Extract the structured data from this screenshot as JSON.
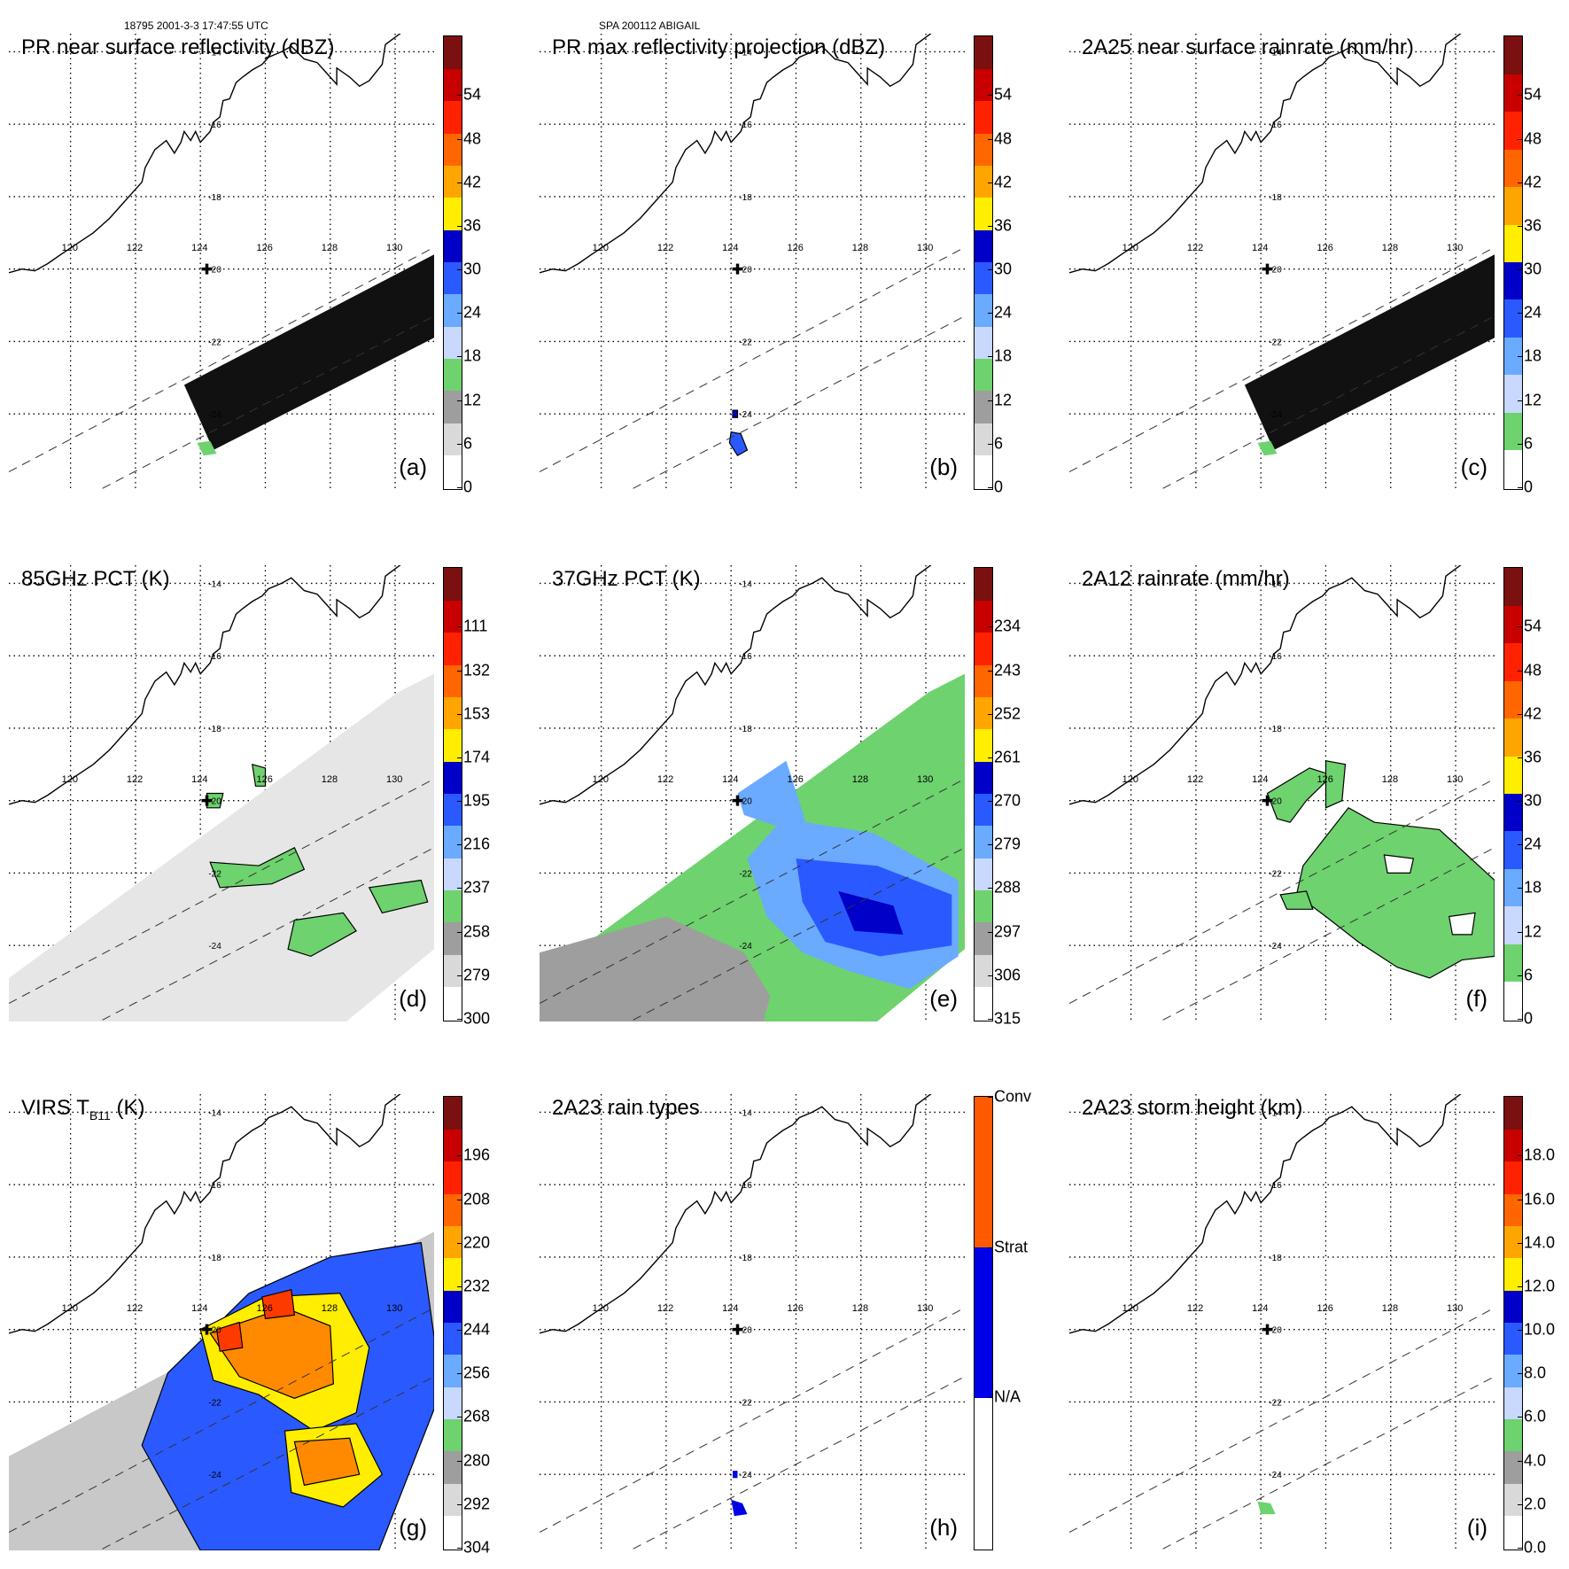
{
  "header": {
    "left": "18795 2001-3-3 17:47:55 UTC",
    "center": "SPA 200112 ABIGAIL"
  },
  "map": {
    "lon_ticks": [
      "120",
      "122",
      "124",
      "126",
      "128",
      "130"
    ],
    "lat_ticks": [
      "-14",
      "-16",
      "-18",
      "-20",
      "-22",
      "-24"
    ],
    "lon_range": [
      118.1,
      131.2
    ],
    "lat_range": [
      -26.1,
      -13.5
    ]
  },
  "panels": [
    {
      "id": "a",
      "letter": "(a)",
      "title": "PR near surface reflectivity (dBZ)",
      "field": "pr-swath-nodata",
      "colorbar": {
        "ticks": [
          "0",
          "6",
          "12",
          "18",
          "24",
          "30",
          "36",
          "42",
          "48",
          "54"
        ],
        "colors": [
          "#ffffff",
          "#d9d9d9",
          "#9e9e9e",
          "#6ed26e",
          "#c8d8ff",
          "#6aaaff",
          "#2a5aff",
          "#0000c8",
          "#ffee00",
          "#ffa500",
          "#ff6600",
          "#ff2200",
          "#c80000",
          "#7a1010"
        ]
      }
    },
    {
      "id": "b",
      "letter": "(b)",
      "title": "PR max reflectivity projection (dBZ)",
      "field": "pr-max-echo",
      "colorbar": {
        "ticks": [
          "0",
          "6",
          "12",
          "18",
          "24",
          "30",
          "36",
          "42",
          "48",
          "54"
        ],
        "colors": [
          "#ffffff",
          "#d9d9d9",
          "#9e9e9e",
          "#6ed26e",
          "#c8d8ff",
          "#6aaaff",
          "#2a5aff",
          "#0000c8",
          "#ffee00",
          "#ffa500",
          "#ff6600",
          "#ff2200",
          "#c80000",
          "#7a1010"
        ]
      }
    },
    {
      "id": "c",
      "letter": "(c)",
      "title": "2A25 near surface rainrate (mm/hr)",
      "field": "pr-swath-nodata",
      "colorbar": {
        "ticks": [
          "0",
          "6",
          "12",
          "18",
          "24",
          "30",
          "36",
          "42",
          "48",
          "54"
        ],
        "colors": [
          "#ffffff",
          "#6ed26e",
          "#c8d8ff",
          "#6aaaff",
          "#2a5aff",
          "#0000c8",
          "#ffee00",
          "#ffa500",
          "#ff6600",
          "#ff2200",
          "#c80000",
          "#7a1010"
        ]
      }
    },
    {
      "id": "d",
      "letter": "(d)",
      "title": "85GHz PCT (K)",
      "field": "tmi-85",
      "colorbar": {
        "ticks": [
          "300",
          "279",
          "258",
          "237",
          "216",
          "195",
          "174",
          "153",
          "132",
          "111"
        ],
        "colors": [
          "#ffffff",
          "#d9d9d9",
          "#9e9e9e",
          "#6ed26e",
          "#c8d8ff",
          "#6aaaff",
          "#2a5aff",
          "#0000c8",
          "#ffee00",
          "#ffa500",
          "#ff6600",
          "#ff2200",
          "#c80000",
          "#7a1010"
        ]
      }
    },
    {
      "id": "e",
      "letter": "(e)",
      "title": "37GHz PCT (K)",
      "field": "tmi-37",
      "colorbar": {
        "ticks": [
          "315",
          "306",
          "297",
          "288",
          "279",
          "270",
          "261",
          "252",
          "243",
          "234"
        ],
        "colors": [
          "#ffffff",
          "#d9d9d9",
          "#9e9e9e",
          "#6ed26e",
          "#c8d8ff",
          "#6aaaff",
          "#2a5aff",
          "#0000c8",
          "#ffee00",
          "#ffa500",
          "#ff6600",
          "#ff2200",
          "#c80000",
          "#7a1010"
        ]
      }
    },
    {
      "id": "f",
      "letter": "(f)",
      "title": "2A12 rainrate (mm/hr)",
      "field": "tmi-rain",
      "colorbar": {
        "ticks": [
          "0",
          "6",
          "12",
          "18",
          "24",
          "30",
          "36",
          "42",
          "48",
          "54"
        ],
        "colors": [
          "#ffffff",
          "#6ed26e",
          "#c8d8ff",
          "#6aaaff",
          "#2a5aff",
          "#0000c8",
          "#ffee00",
          "#ffa500",
          "#ff6600",
          "#ff2200",
          "#c80000",
          "#7a1010"
        ]
      }
    },
    {
      "id": "g",
      "letter": "(g)",
      "title": "VIRS T",
      "title_sub": "B11",
      "title_suffix": " (K)",
      "field": "virs",
      "colorbar": {
        "ticks": [
          "304",
          "292",
          "280",
          "268",
          "256",
          "244",
          "232",
          "220",
          "208",
          "196"
        ],
        "colors": [
          "#ffffff",
          "#d9d9d9",
          "#9e9e9e",
          "#6ed26e",
          "#c8d8ff",
          "#6aaaff",
          "#2a5aff",
          "#0000c8",
          "#ffee00",
          "#ffa500",
          "#ff6600",
          "#ff2200",
          "#c80000",
          "#7a1010"
        ]
      }
    },
    {
      "id": "h",
      "letter": "(h)",
      "title": "2A23 rain types",
      "field": "rain-types",
      "colorbar": {
        "ticks": [
          "N/A",
          "Strat",
          "Conv"
        ],
        "categorical": true,
        "colors": [
          "#ffffff",
          "#0000e6",
          "#ff5a00"
        ]
      }
    },
    {
      "id": "i",
      "letter": "(i)",
      "title": "2A23 storm height (km)",
      "field": "storm-height",
      "colorbar": {
        "ticks": [
          "0.0",
          "2.0",
          "4.0",
          "6.0",
          "8.0",
          "10.0",
          "12.0",
          "14.0",
          "16.0",
          "18.0"
        ],
        "colors": [
          "#ffffff",
          "#d9d9d9",
          "#9e9e9e",
          "#6ed26e",
          "#c8d8ff",
          "#6aaaff",
          "#2a5aff",
          "#0000c8",
          "#ffee00",
          "#ffa500",
          "#ff6600",
          "#ff2200",
          "#c80000",
          "#7a1010"
        ]
      }
    }
  ]
}
